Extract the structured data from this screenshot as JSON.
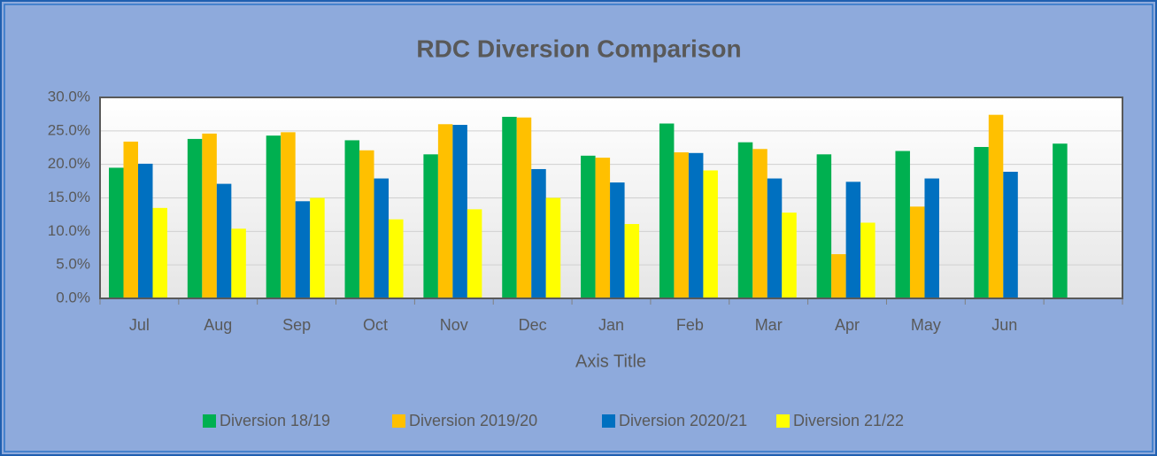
{
  "chart_data": {
    "type": "bar",
    "title": "RDC Diversion Comparison",
    "x_label": "Axis Title",
    "categories": [
      "Jul",
      "Aug",
      "Sep",
      "Oct",
      "Nov",
      "Dec",
      "Jan",
      "Feb",
      "Mar",
      "Apr",
      "May",
      "Jun",
      null
    ],
    "series": [
      {
        "name": "Diversion 18/19",
        "color": "#00b050",
        "values": [
          19.5,
          23.8,
          24.3,
          23.6,
          21.5,
          27.1,
          21.3,
          26.1,
          23.3,
          21.5,
          22.0,
          22.6,
          23.1
        ]
      },
      {
        "name": "Diversion 2019/20",
        "color": "#ffc000",
        "values": [
          23.4,
          24.6,
          24.8,
          22.1,
          26.0,
          27.0,
          21.0,
          21.8,
          22.3,
          6.6,
          13.7,
          27.4,
          null
        ]
      },
      {
        "name": "Diversion 2020/21",
        "color": "#0070c0",
        "values": [
          20.1,
          17.1,
          14.5,
          17.9,
          25.9,
          19.3,
          17.3,
          21.7,
          17.9,
          17.4,
          17.9,
          18.9,
          null
        ]
      },
      {
        "name": "Diversion 21/22",
        "color": "#ffff00",
        "values": [
          13.5,
          10.4,
          15.0,
          11.8,
          13.3,
          15.0,
          11.1,
          19.1,
          12.8,
          11.3,
          null,
          null,
          null
        ]
      }
    ],
    "ylim": [
      0,
      30
    ],
    "yticks": [
      {
        "value": 0,
        "label": "0.0%"
      },
      {
        "value": 5,
        "label": "5.0%"
      },
      {
        "value": 10,
        "label": "10.0%"
      },
      {
        "value": 15,
        "label": "15.0%"
      },
      {
        "value": 20,
        "label": "20.0%"
      },
      {
        "value": 25,
        "label": "25.0%"
      },
      {
        "value": 30,
        "label": "30.0%"
      }
    ],
    "grid": true,
    "legend": "bottom"
  }
}
